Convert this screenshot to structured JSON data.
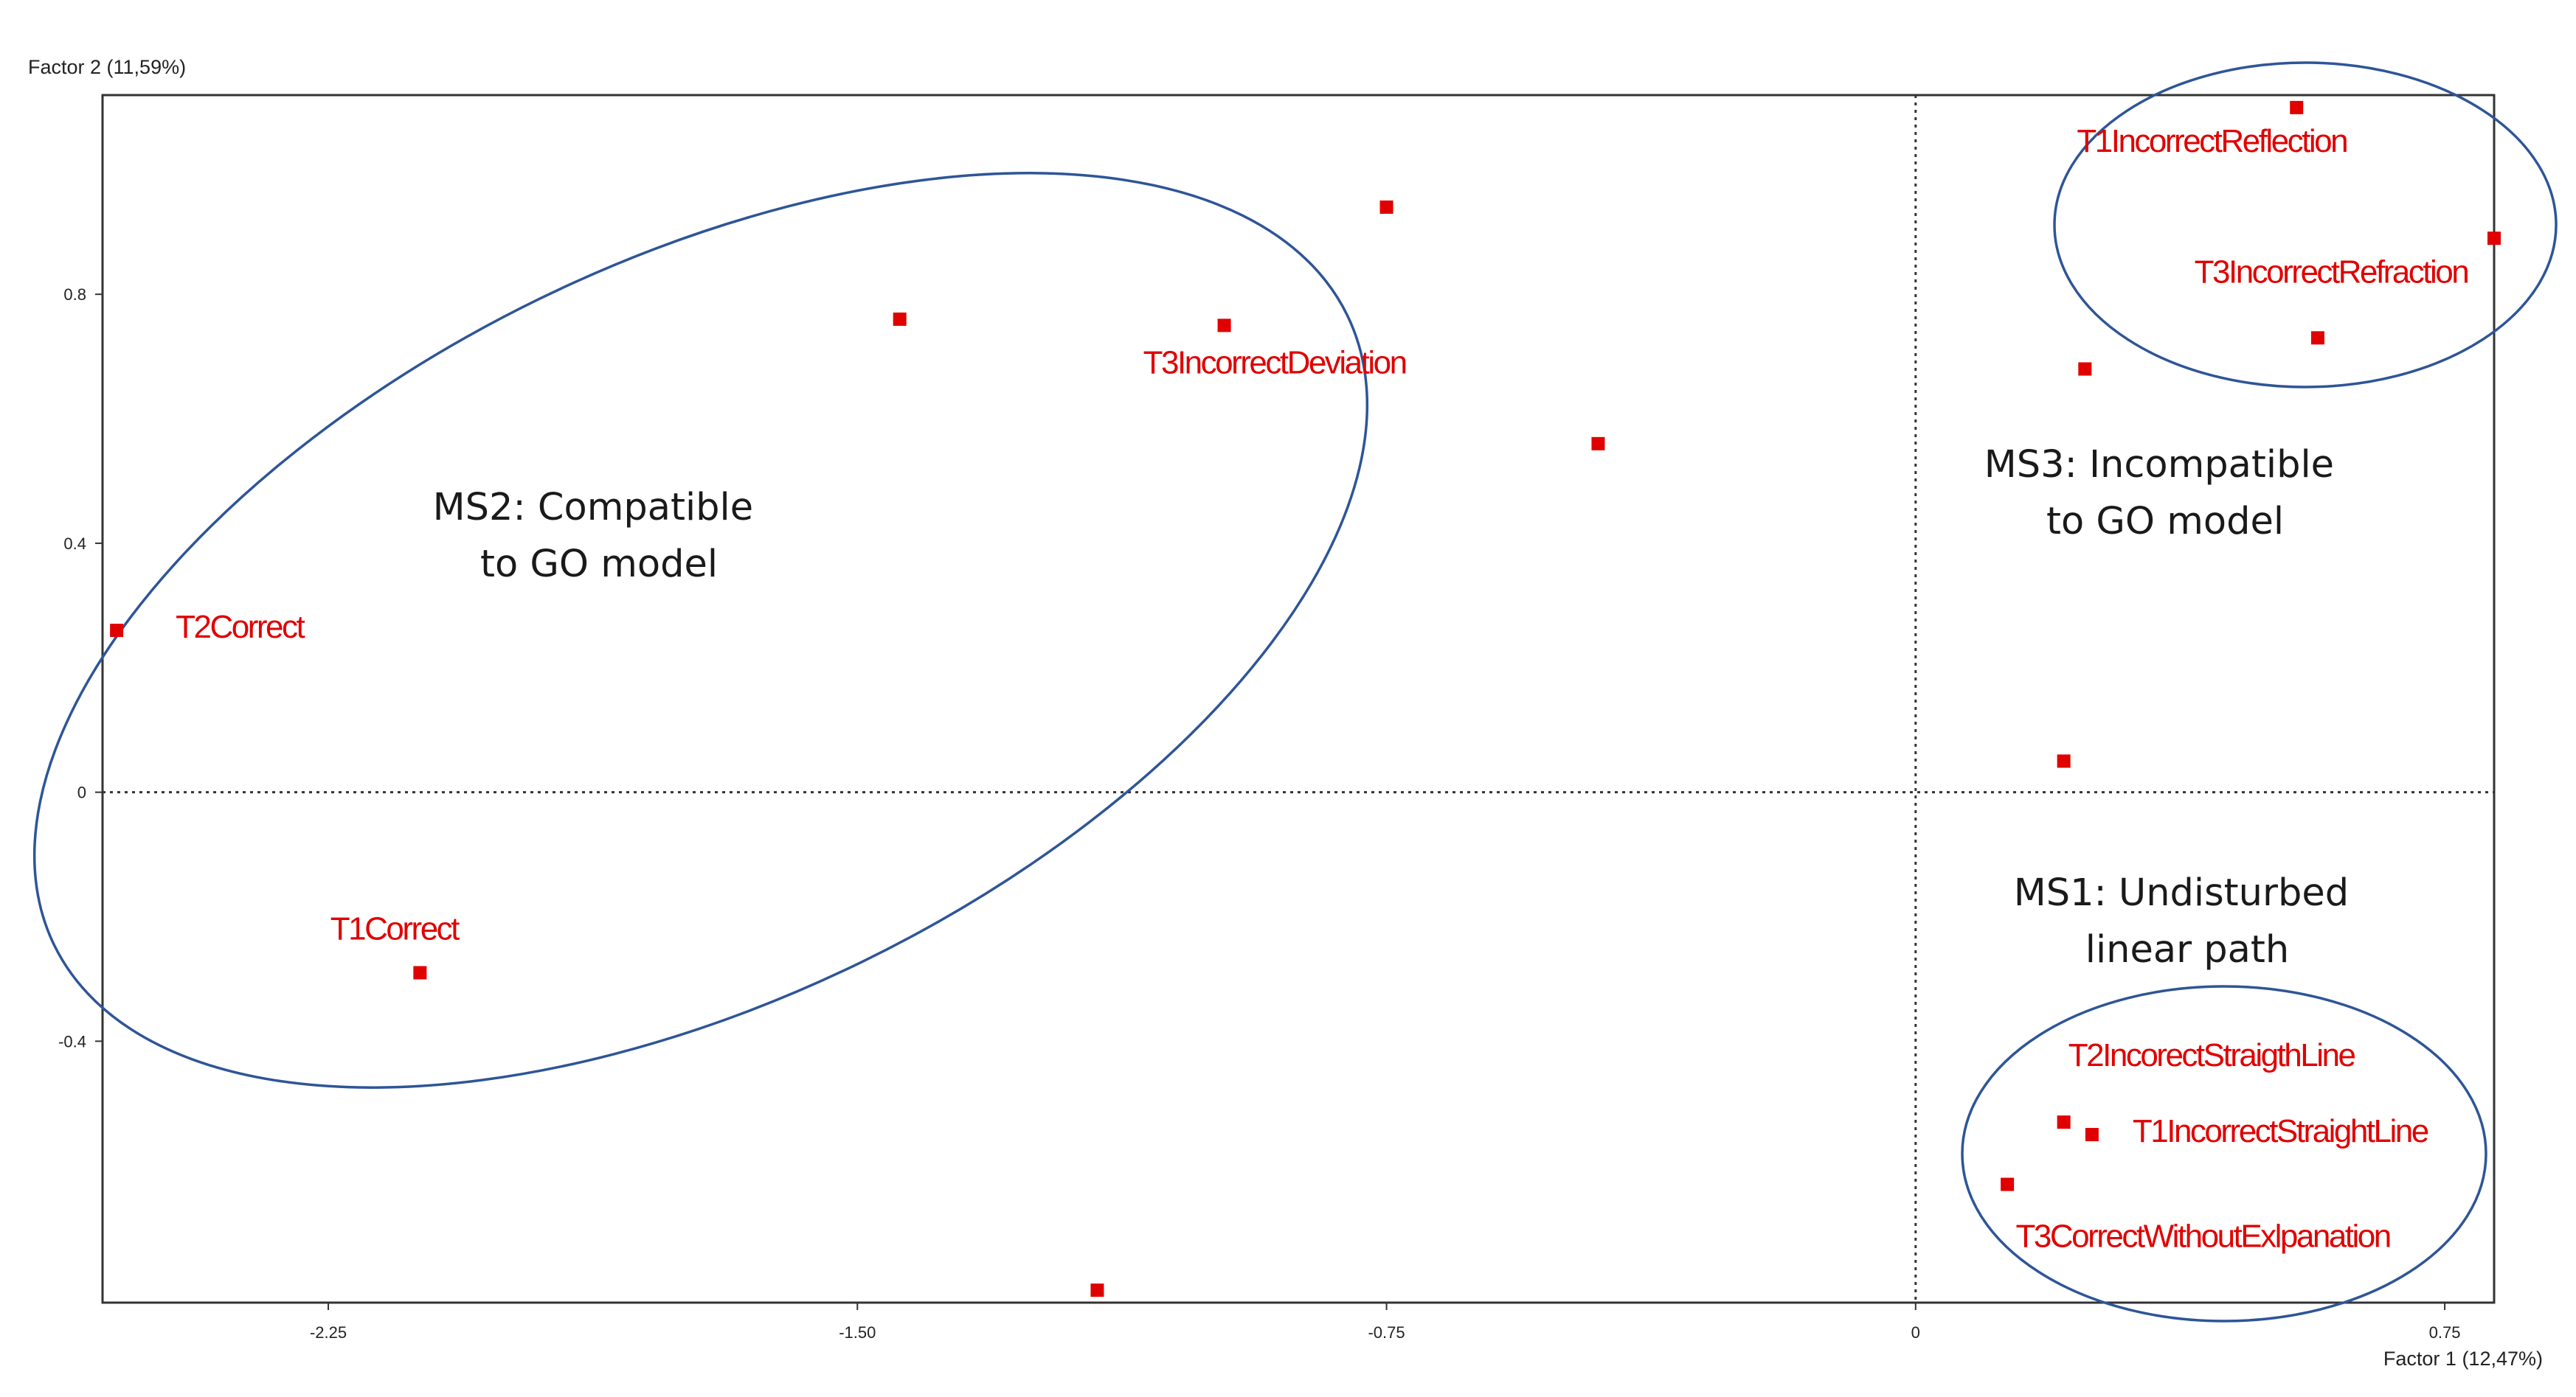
{
  "chart_data": {
    "type": "scatter",
    "xlabel": "Factor 1 (12,47%)",
    "ylabel": "Factor 2 (11,59%)",
    "xlim": [
      -2.57,
      0.82
    ],
    "ylim": [
      -0.82,
      1.12
    ],
    "xticks": [
      {
        "value": -2.25,
        "label": "-2.25"
      },
      {
        "value": -1.5,
        "label": "-1.50"
      },
      {
        "value": -0.75,
        "label": "-0.75"
      },
      {
        "value": 0,
        "label": "0"
      },
      {
        "value": 0.75,
        "label": "0.75"
      }
    ],
    "yticks": [
      {
        "value": 0.8,
        "label": "0.8"
      },
      {
        "value": 0.4,
        "label": "0.4"
      },
      {
        "value": 0,
        "label": "0"
      },
      {
        "value": -0.4,
        "label": "-0.4"
      }
    ],
    "reference_lines": {
      "x": 0,
      "y": 0,
      "style": "dotted"
    },
    "grid": false,
    "point_color": "#e00000",
    "outline_color": "#2e5597",
    "points": [
      {
        "x": 0.54,
        "y": 1.1,
        "label": "T1IncorrectReflection"
      },
      {
        "x": 0.82,
        "y": 0.89,
        "label": ""
      },
      {
        "x": 0.57,
        "y": 0.73,
        "label": "T3IncorrectRefraction"
      },
      {
        "x": 0.24,
        "y": 0.68,
        "label": ""
      },
      {
        "x": 0.21,
        "y": 0.05,
        "label": ""
      },
      {
        "x": -0.75,
        "y": 0.94,
        "label": ""
      },
      {
        "x": -1.44,
        "y": 0.76,
        "label": ""
      },
      {
        "x": -0.98,
        "y": 0.75,
        "label": "T3IncorrectDeviation"
      },
      {
        "x": -0.45,
        "y": 0.56,
        "label": ""
      },
      {
        "x": -2.55,
        "y": 0.26,
        "label": "T2Correct"
      },
      {
        "x": -2.12,
        "y": -0.29,
        "label": "T1Correct"
      },
      {
        "x": -1.16,
        "y": -0.8,
        "label": ""
      },
      {
        "x": 0.21,
        "y": -0.53,
        "label": "T2IncorectStraigthLine"
      },
      {
        "x": 0.25,
        "y": -0.55,
        "label": "T1IncorrectStraightLine"
      },
      {
        "x": 0.13,
        "y": -0.63,
        "label": "T3CorrectWithoutExlpanation"
      }
    ],
    "groups": [
      {
        "name": "MS2: Compatible to GO model",
        "lines": [
          "MS2: Compatible",
          "to GO model"
        ]
      },
      {
        "name": "MS3: Incompatible to GO model",
        "lines": [
          "MS3: Incompatible",
          "to GO model"
        ]
      },
      {
        "name": "MS1: Undisturbed linear path",
        "lines": [
          "MS1: Undisturbed",
          "linear path"
        ]
      }
    ]
  }
}
